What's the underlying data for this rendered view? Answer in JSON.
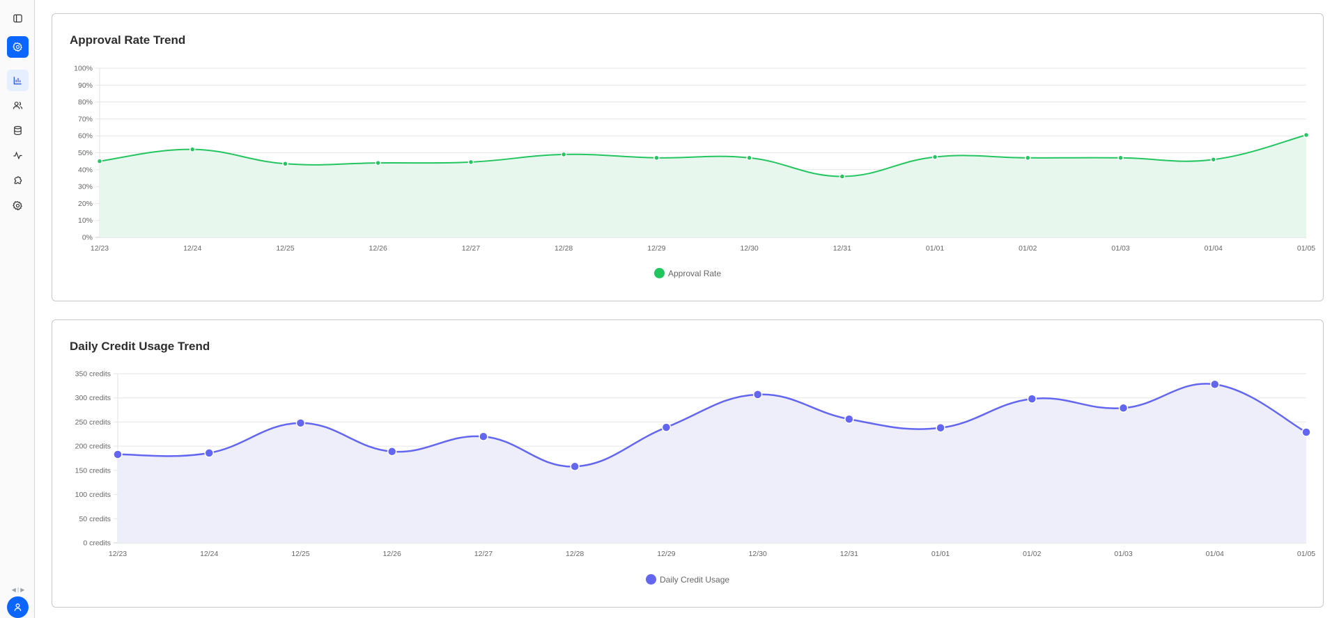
{
  "sidebar": {
    "items": [
      {
        "name": "toggle-sidebar",
        "icon": "sidebar-panel-icon"
      },
      {
        "name": "settings-primary",
        "icon": "gear-icon",
        "primary": true
      },
      {
        "name": "analytics",
        "icon": "bar-chart-icon",
        "active": true
      },
      {
        "name": "users",
        "icon": "users-icon"
      },
      {
        "name": "database",
        "icon": "database-icon"
      },
      {
        "name": "activity",
        "icon": "activity-icon"
      },
      {
        "name": "plugins",
        "icon": "puzzle-icon"
      },
      {
        "name": "settings",
        "icon": "gear-icon"
      }
    ],
    "collapse_arrows": "◀ | ▶",
    "avatar_icon": "user-icon"
  },
  "colors": {
    "accent": "#0a66ff",
    "approval_line": "#22c55e",
    "approval_fill": "#e8f7ee",
    "credit_line": "#6366f1",
    "credit_fill": "#eeeefb",
    "grid": "#e5e5e5"
  },
  "chart_data": [
    {
      "type": "area",
      "title": "Approval Rate Trend",
      "xlabel": "",
      "ylabel": "",
      "categories": [
        "12/23",
        "12/24",
        "12/25",
        "12/26",
        "12/27",
        "12/28",
        "12/29",
        "12/30",
        "12/31",
        "01/01",
        "01/02",
        "01/03",
        "01/04",
        "01/05"
      ],
      "series": [
        {
          "name": "Approval Rate",
          "values": [
            45,
            52,
            43.5,
            44,
            44.5,
            49,
            47,
            47,
            36,
            47.5,
            47,
            47,
            46,
            60.5
          ],
          "color": "#22c55e"
        }
      ],
      "yticks": [
        "0%",
        "10%",
        "20%",
        "30%",
        "40%",
        "50%",
        "60%",
        "70%",
        "80%",
        "90%",
        "100%"
      ],
      "ylim": [
        0,
        100
      ],
      "grid": true,
      "legend_position": "bottom"
    },
    {
      "type": "area",
      "title": "Daily Credit Usage Trend",
      "xlabel": "",
      "ylabel": "",
      "categories": [
        "12/23",
        "12/24",
        "12/25",
        "12/26",
        "12/27",
        "12/28",
        "12/29",
        "12/30",
        "12/31",
        "01/01",
        "01/02",
        "01/03",
        "01/04",
        "01/05"
      ],
      "series": [
        {
          "name": "Daily Credit Usage",
          "values": [
            183,
            186,
            248,
            189,
            220,
            158,
            239,
            307,
            256,
            238,
            298,
            279,
            328,
            229
          ],
          "color": "#6366f1"
        }
      ],
      "yticks": [
        "0 credits",
        "50 credits",
        "100 credits",
        "150 credits",
        "200 credits",
        "250 credits",
        "300 credits",
        "350 credits"
      ],
      "ylim": [
        0,
        350
      ],
      "grid": true,
      "legend_position": "bottom"
    }
  ]
}
